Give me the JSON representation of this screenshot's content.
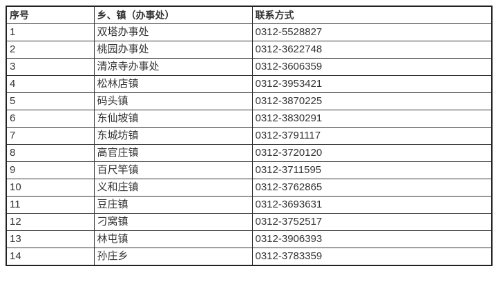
{
  "table": {
    "headers": [
      "序号",
      "乡、镇（办事处）",
      "联系方式"
    ],
    "rows": [
      [
        "1",
        "双塔办事处",
        "0312-5528827"
      ],
      [
        "2",
        "桃园办事处",
        "0312-3622748"
      ],
      [
        "3",
        "清凉寺办事处",
        "0312-3606359"
      ],
      [
        "4",
        "松林店镇",
        "0312-3953421"
      ],
      [
        "5",
        "码头镇",
        "0312-3870225"
      ],
      [
        "6",
        "东仙坡镇",
        "0312-3830291"
      ],
      [
        "7",
        "东城坊镇",
        "0312-3791117"
      ],
      [
        "8",
        "高官庄镇",
        "0312-3720120"
      ],
      [
        "9",
        "百尺竿镇",
        "0312-3711595"
      ],
      [
        "10",
        "义和庄镇",
        "0312-3762865"
      ],
      [
        "11",
        "豆庄镇",
        "0312-3693631"
      ],
      [
        "12",
        "刁窝镇",
        "0312-3752517"
      ],
      [
        "13",
        "林屯镇",
        "0312-3906393"
      ],
      [
        "14",
        "孙庄乡",
        "0312-3783359"
      ]
    ]
  },
  "colors": {
    "border_outer": "#222222",
    "border_inner": "#333333",
    "text": "#333333",
    "background": "#ffffff"
  }
}
